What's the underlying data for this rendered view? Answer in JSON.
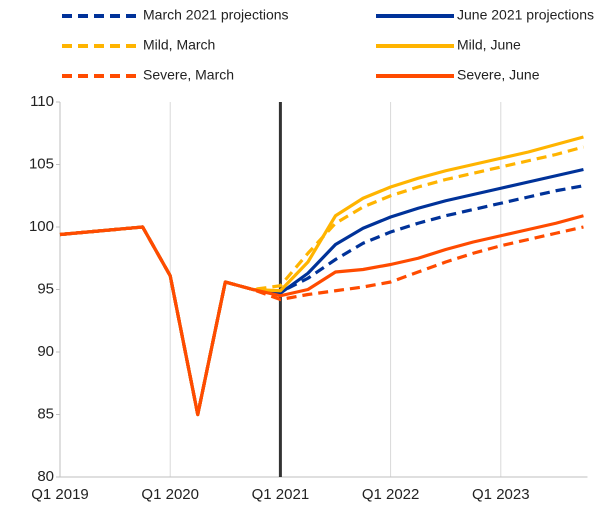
{
  "chart_data": {
    "type": "line",
    "categories": [
      "Q1 2019",
      null,
      null,
      null,
      "Q1 2020",
      null,
      null,
      null,
      "Q1 2021",
      null,
      null,
      null,
      "Q1 2022",
      null,
      null,
      null,
      "Q1 2023",
      null,
      null,
      null
    ],
    "ylim": [
      80,
      110
    ],
    "yticks": [
      80,
      85,
      90,
      95,
      100,
      105,
      110
    ],
    "vline": 8,
    "series": [
      {
        "name": "March 2021 projections",
        "color": "#003299",
        "dashed": true,
        "values": [
          99.4,
          99.6,
          99.8,
          100.0,
          96.1,
          85.0,
          95.6,
          95.0,
          94.8,
          95.9,
          97.4,
          98.7,
          99.6,
          100.3,
          100.9,
          101.4,
          101.9,
          102.4,
          102.9,
          103.3
        ]
      },
      {
        "name": "June 2021 projections",
        "color": "#003299",
        "dashed": false,
        "values": [
          99.4,
          99.6,
          99.8,
          100.0,
          96.1,
          85.0,
          95.6,
          95.0,
          94.7,
          96.3,
          98.6,
          99.9,
          100.8,
          101.5,
          102.1,
          102.6,
          103.1,
          103.6,
          104.1,
          104.6
        ]
      },
      {
        "name": "Mild, March",
        "color": "#ffb400",
        "dashed": true,
        "values": [
          99.4,
          99.6,
          99.8,
          100.0,
          96.1,
          85.0,
          95.6,
          95.0,
          95.3,
          97.9,
          100.3,
          101.6,
          102.5,
          103.2,
          103.8,
          104.3,
          104.8,
          105.3,
          105.8,
          106.4
        ]
      },
      {
        "name": "Mild, June",
        "color": "#ffb400",
        "dashed": false,
        "values": [
          99.4,
          99.6,
          99.8,
          100.0,
          96.1,
          85.0,
          95.6,
          95.0,
          94.9,
          97.2,
          100.9,
          102.3,
          103.2,
          103.9,
          104.5,
          105.0,
          105.5,
          106.0,
          106.6,
          107.2
        ]
      },
      {
        "name": "Severe, March",
        "color": "#ff4b00",
        "dashed": true,
        "values": [
          99.4,
          99.6,
          99.8,
          100.0,
          96.1,
          85.0,
          95.6,
          95.0,
          94.2,
          94.6,
          94.9,
          95.2,
          95.6,
          96.4,
          97.2,
          97.9,
          98.5,
          99.0,
          99.5,
          100.0
        ]
      },
      {
        "name": "Severe, June",
        "color": "#ff4b00",
        "dashed": false,
        "values": [
          99.4,
          99.6,
          99.8,
          100.0,
          96.1,
          85.0,
          95.6,
          95.0,
          94.5,
          95.0,
          96.4,
          96.6,
          97.0,
          97.5,
          98.2,
          98.8,
          99.3,
          99.8,
          100.3,
          100.9
        ]
      }
    ]
  }
}
